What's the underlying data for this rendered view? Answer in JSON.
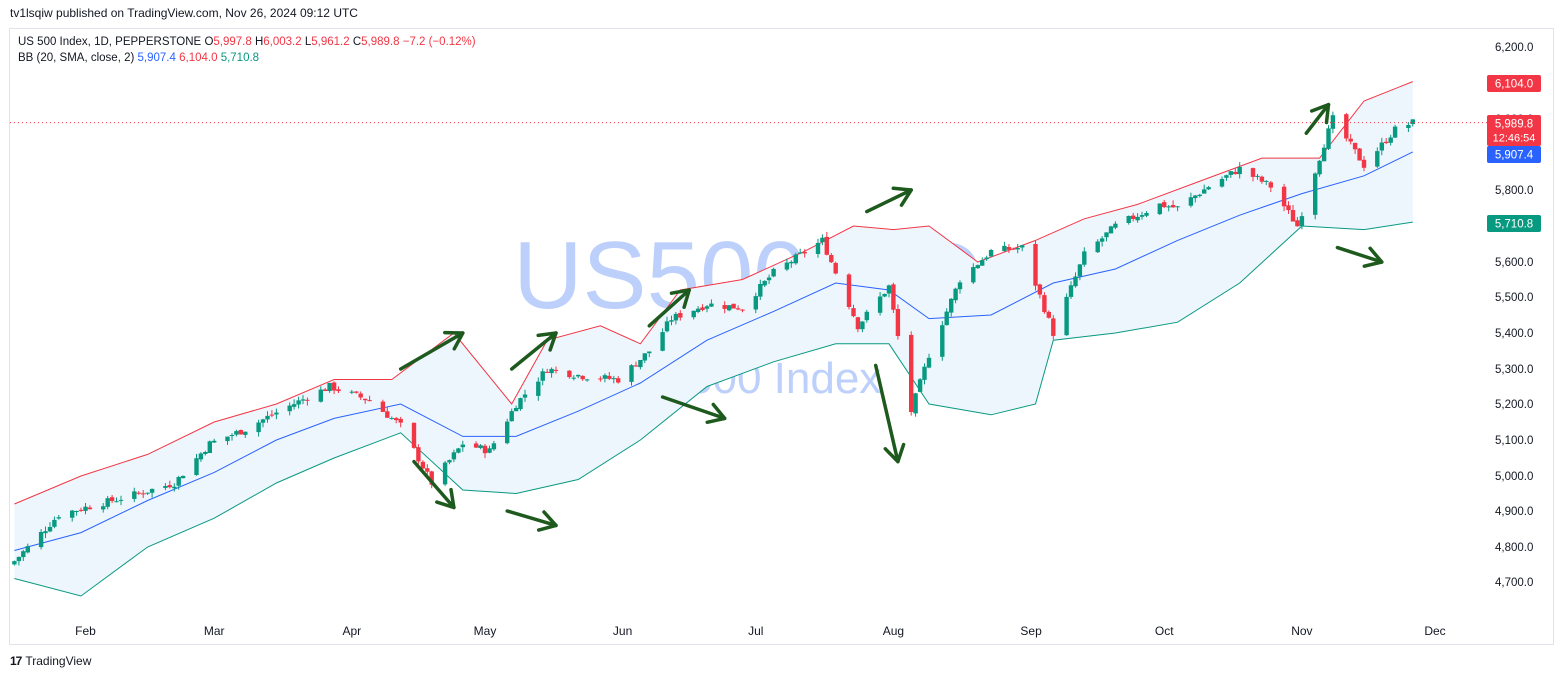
{
  "header": {
    "published": "tv1lsqiw published on TradingView.com, Nov 26, 2024 09:12 UTC"
  },
  "legend": {
    "symbol": "US 500 Index, 1D, PEPPERSTONE",
    "o_label": "O",
    "o": "5,997.8",
    "h_label": "H",
    "h": "6,003.2",
    "l_label": "L",
    "l": "5,961.2",
    "c_label": "C",
    "c": "5,989.8",
    "change": "−7.2 (−0.12%)",
    "bb_label": "BB (20, SMA, close, 2)",
    "bb_basis": "5,907.4",
    "bb_upper": "6,104.0",
    "bb_lower": "5,710.8"
  },
  "watermark": {
    "symbol": "US500, 1D",
    "name": "US 500 Index"
  },
  "price_badges": {
    "upper": "6,104.0",
    "last": "5,989.8",
    "countdown": "12:46:54",
    "basis": "5,907.4",
    "lower": "5,710.8"
  },
  "footer": {
    "brand": "TradingView"
  },
  "colors": {
    "up": "#089981",
    "down": "#f23645",
    "upper_band": "#f23645",
    "basis": "#2962ff",
    "lower_band": "#089981",
    "band_fill": "#eef6fd",
    "arrows": "#1e5a1e",
    "watermark": "#bcd0fb"
  },
  "chart_data": {
    "type": "candlestick",
    "title": "US 500 Index, 1D, PEPPERSTONE",
    "y_ticks": [
      4700,
      4800,
      4900,
      5000,
      5100,
      5200,
      5300,
      5400,
      5500,
      5600,
      5800,
      6000,
      6200
    ],
    "y_tick_labels": [
      "4,700.0",
      "4,800.0",
      "4,900.0",
      "5,000.0",
      "5,100.0",
      "5,200.0",
      "5,300.0",
      "5,400.0",
      "5,500.0",
      "5,600.0",
      "5,800.0",
      "6,000.0",
      "6,200.0"
    ],
    "ylim": [
      4633,
      6300
    ],
    "x_ticks": [
      {
        "label": "Feb",
        "date": "2024-02-01"
      },
      {
        "label": "Mar",
        "date": "2024-03-01"
      },
      {
        "label": "Apr",
        "date": "2024-04-01"
      },
      {
        "label": "May",
        "date": "2024-05-01"
      },
      {
        "label": "Jun",
        "date": "2024-06-01"
      },
      {
        "label": "Jul",
        "date": "2024-07-01"
      },
      {
        "label": "Aug",
        "date": "2024-08-01"
      },
      {
        "label": "Sep",
        "date": "2024-09-01"
      },
      {
        "label": "Oct",
        "date": "2024-10-01"
      },
      {
        "label": "Nov",
        "date": "2024-11-01"
      },
      {
        "label": "Dec",
        "date": "2024-12-01"
      }
    ],
    "xlim": [
      "2024-01-15",
      "2024-12-10"
    ],
    "close_anchors": [
      [
        "2024-01-16",
        4760
      ],
      [
        "2024-01-26",
        4890
      ],
      [
        "2024-02-01",
        4910
      ],
      [
        "2024-02-13",
        4950
      ],
      [
        "2024-02-21",
        4980
      ],
      [
        "2024-02-29",
        5090
      ],
      [
        "2024-03-08",
        5130
      ],
      [
        "2024-03-14",
        5170
      ],
      [
        "2024-03-27",
        5250
      ],
      [
        "2024-04-05",
        5210
      ],
      [
        "2024-04-12",
        5140
      ],
      [
        "2024-04-19",
        4980
      ],
      [
        "2024-04-26",
        5090
      ],
      [
        "2024-05-02",
        5070
      ],
      [
        "2024-05-08",
        5200
      ],
      [
        "2024-05-15",
        5300
      ],
      [
        "2024-05-23",
        5280
      ],
      [
        "2024-05-31",
        5270
      ],
      [
        "2024-06-07",
        5350
      ],
      [
        "2024-06-12",
        5440
      ],
      [
        "2024-06-20",
        5480
      ],
      [
        "2024-06-28",
        5470
      ],
      [
        "2024-07-05",
        5570
      ],
      [
        "2024-07-16",
        5660
      ],
      [
        "2024-07-24",
        5420
      ],
      [
        "2024-07-31",
        5530
      ],
      [
        "2024-08-05",
        5180
      ],
      [
        "2024-08-09",
        5340
      ],
      [
        "2024-08-16",
        5550
      ],
      [
        "2024-08-23",
        5630
      ],
      [
        "2024-08-30",
        5640
      ],
      [
        "2024-09-06",
        5400
      ],
      [
        "2024-09-13",
        5620
      ],
      [
        "2024-09-20",
        5700
      ],
      [
        "2024-09-30",
        5760
      ],
      [
        "2024-10-04",
        5750
      ],
      [
        "2024-10-11",
        5810
      ],
      [
        "2024-10-18",
        5860
      ],
      [
        "2024-10-25",
        5810
      ],
      [
        "2024-10-31",
        5700
      ],
      [
        "2024-11-06",
        5930
      ],
      [
        "2024-11-08",
        6000
      ],
      [
        "2024-11-15",
        5870
      ],
      [
        "2024-11-22",
        5970
      ],
      [
        "2024-11-26",
        5989.8
      ]
    ],
    "upper_band": [
      [
        "2024-01-16",
        4920
      ],
      [
        "2024-01-31",
        5000
      ],
      [
        "2024-02-15",
        5060
      ],
      [
        "2024-03-01",
        5150
      ],
      [
        "2024-03-15",
        5200
      ],
      [
        "2024-03-28",
        5270
      ],
      [
        "2024-04-10",
        5270
      ],
      [
        "2024-04-24",
        5400
      ],
      [
        "2024-05-07",
        5200
      ],
      [
        "2024-05-15",
        5380
      ],
      [
        "2024-05-27",
        5420
      ],
      [
        "2024-06-05",
        5370
      ],
      [
        "2024-06-14",
        5520
      ],
      [
        "2024-06-28",
        5550
      ],
      [
        "2024-07-12",
        5630
      ],
      [
        "2024-07-23",
        5700
      ],
      [
        "2024-08-01",
        5690
      ],
      [
        "2024-08-09",
        5700
      ],
      [
        "2024-08-20",
        5600
      ],
      [
        "2024-09-02",
        5660
      ],
      [
        "2024-09-13",
        5720
      ],
      [
        "2024-09-25",
        5760
      ],
      [
        "2024-10-08",
        5820
      ],
      [
        "2024-10-23",
        5890
      ],
      [
        "2024-11-05",
        5890
      ],
      [
        "2024-11-15",
        6050
      ],
      [
        "2024-11-26",
        6104
      ]
    ],
    "basis": [
      [
        "2024-01-16",
        4790
      ],
      [
        "2024-01-31",
        4840
      ],
      [
        "2024-02-15",
        4930
      ],
      [
        "2024-03-01",
        5010
      ],
      [
        "2024-03-15",
        5100
      ],
      [
        "2024-03-28",
        5160
      ],
      [
        "2024-04-12",
        5200
      ],
      [
        "2024-04-26",
        5110
      ],
      [
        "2024-05-08",
        5110
      ],
      [
        "2024-05-22",
        5180
      ],
      [
        "2024-06-05",
        5260
      ],
      [
        "2024-06-20",
        5380
      ],
      [
        "2024-07-05",
        5460
      ],
      [
        "2024-07-19",
        5540
      ],
      [
        "2024-07-31",
        5520
      ],
      [
        "2024-08-09",
        5440
      ],
      [
        "2024-08-23",
        5450
      ],
      [
        "2024-09-06",
        5540
      ],
      [
        "2024-09-20",
        5580
      ],
      [
        "2024-10-04",
        5660
      ],
      [
        "2024-10-18",
        5730
      ],
      [
        "2024-11-01",
        5790
      ],
      [
        "2024-11-15",
        5840
      ],
      [
        "2024-11-26",
        5907.4
      ]
    ],
    "lower_band": [
      [
        "2024-01-16",
        4710
      ],
      [
        "2024-01-31",
        4660
      ],
      [
        "2024-02-15",
        4800
      ],
      [
        "2024-03-01",
        4880
      ],
      [
        "2024-03-15",
        4980
      ],
      [
        "2024-03-28",
        5050
      ],
      [
        "2024-04-12",
        5120
      ],
      [
        "2024-04-26",
        4960
      ],
      [
        "2024-05-08",
        4950
      ],
      [
        "2024-05-22",
        4990
      ],
      [
        "2024-06-05",
        5100
      ],
      [
        "2024-06-20",
        5250
      ],
      [
        "2024-07-05",
        5320
      ],
      [
        "2024-07-19",
        5370
      ],
      [
        "2024-07-31",
        5370
      ],
      [
        "2024-08-09",
        5200
      ],
      [
        "2024-08-23",
        5170
      ],
      [
        "2024-09-02",
        5200
      ],
      [
        "2024-09-06",
        5380
      ],
      [
        "2024-09-20",
        5400
      ],
      [
        "2024-10-04",
        5430
      ],
      [
        "2024-10-18",
        5540
      ],
      [
        "2024-11-01",
        5700
      ],
      [
        "2024-11-15",
        5690
      ],
      [
        "2024-11-26",
        5710.8
      ]
    ],
    "arrows": [
      {
        "dir": "up",
        "from": [
          "2024-04-12",
          5300
        ],
        "to": [
          "2024-04-26",
          5400
        ]
      },
      {
        "dir": "down",
        "from": [
          "2024-04-15",
          5040
        ],
        "to": [
          "2024-04-24",
          4910
        ]
      },
      {
        "dir": "up",
        "from": [
          "2024-05-07",
          5300
        ],
        "to": [
          "2024-05-17",
          5400
        ]
      },
      {
        "dir": "down",
        "from": [
          "2024-05-06",
          4900
        ],
        "to": [
          "2024-05-17",
          4860
        ]
      },
      {
        "dir": "up",
        "from": [
          "2024-06-07",
          5420
        ],
        "to": [
          "2024-06-16",
          5520
        ]
      },
      {
        "dir": "down",
        "from": [
          "2024-06-10",
          5220
        ],
        "to": [
          "2024-06-24",
          5160
        ]
      },
      {
        "dir": "up",
        "from": [
          "2024-07-26",
          5740
        ],
        "to": [
          "2024-08-05",
          5800
        ]
      },
      {
        "dir": "down",
        "from": [
          "2024-07-28",
          5310
        ],
        "to": [
          "2024-08-02",
          5040
        ]
      },
      {
        "dir": "up",
        "from": [
          "2024-11-02",
          5960
        ],
        "to": [
          "2024-11-07",
          6040
        ]
      },
      {
        "dir": "down",
        "from": [
          "2024-11-09",
          5640
        ],
        "to": [
          "2024-11-19",
          5600
        ]
      }
    ]
  }
}
